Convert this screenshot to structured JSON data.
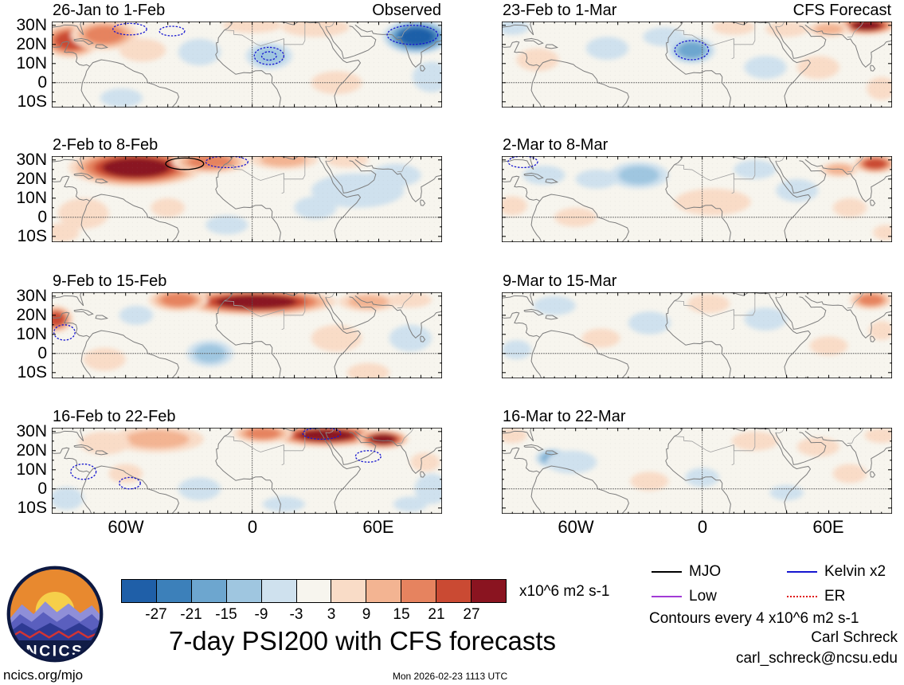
{
  "title": "7-day PSI200 with CFS forecasts",
  "axes": {
    "y_ticks": [
      "30N",
      "20N",
      "10N",
      "0",
      "10S"
    ],
    "x_ticks": [
      "60W",
      "0",
      "60E"
    ]
  },
  "colorbar": {
    "tick_labels": [
      "-27",
      "-21",
      "-15",
      "-9",
      "-3",
      "3",
      "9",
      "15",
      "21",
      "27"
    ],
    "units_label": "x10^6 m2 s-1"
  },
  "legend": {
    "items": [
      {
        "key": "mjo",
        "label": "MJO",
        "color": "#000000",
        "line_style": "solid"
      },
      {
        "key": "kelvin",
        "label": "Kelvin x2",
        "color": "#1616d0",
        "line_style": "solid"
      },
      {
        "key": "low",
        "label": "Low",
        "color": "#a23bd6",
        "line_style": "solid"
      },
      {
        "key": "er",
        "label": "ER",
        "color": "#e01616",
        "line_style": "dotted"
      }
    ]
  },
  "notes": {
    "contour_note": "Contours every 4 x10^6 m2 s-1",
    "credit_name": "Carl Schreck",
    "credit_email": "carl_schreck@ncsu.edu",
    "site": "ncics.org/mjo",
    "timestamp": "Mon 2026-02-23 1113 UTC"
  },
  "logo": {
    "label": "NCICS"
  },
  "chart_data": {
    "type": "heatmap",
    "variable": "PSI200 anomaly (7-day mean streamfunction at 200 hPa)",
    "units": "x10^6 m2 s-1",
    "contour_interval": 4,
    "levels": [
      -27,
      -21,
      -15,
      -9,
      -3,
      3,
      9,
      15,
      21,
      27
    ],
    "palette": [
      "#1f5fa8",
      "#3c80ba",
      "#6da6cf",
      "#9fc6e0",
      "#cfe1ee",
      "#f7f5ee",
      "#f9dcc7",
      "#f3b492",
      "#e6835f",
      "#ca4a33",
      "#8a1420"
    ],
    "map_bg": "#f7f5ee",
    "lon_range": [
      -95,
      90
    ],
    "lat_range": [
      -13,
      32
    ],
    "x_ticks_deg": [
      -60,
      0,
      60
    ],
    "y_ticks_deg": [
      30,
      20,
      10,
      0,
      -10
    ],
    "columns": [
      "Observed",
      "CFS Forecast"
    ],
    "wave_styles": {
      "MJO": {
        "color": "#000000",
        "dash": ""
      },
      "Kelvin": {
        "color": "#1616d0",
        "dash": "2.4 1.8"
      },
      "Low": {
        "color": "#a23bd6",
        "dash": ""
      },
      "ER": {
        "color": "#e01616",
        "dash": "0.8 1.2"
      }
    },
    "panels": [
      {
        "title": "26-Jan to 1-Feb",
        "column": "Observed",
        "features": [
          {
            "lon": -86,
            "lat": 22,
            "rx": 14,
            "ry": 9,
            "value": 26
          },
          {
            "lon": -70,
            "lat": 25,
            "rx": 16,
            "ry": 8,
            "value": 18
          },
          {
            "lon": -52,
            "lat": 17,
            "rx": 11,
            "ry": 6,
            "value": 8
          },
          {
            "lon": -62,
            "lat": -8,
            "rx": 10,
            "ry": 5,
            "value": -4
          },
          {
            "lon": -25,
            "lat": 16,
            "rx": 10,
            "ry": 7,
            "value": -6
          },
          {
            "lon": 0,
            "lat": 30,
            "rx": 14,
            "ry": 4,
            "value": 6
          },
          {
            "lon": 8,
            "lat": 14,
            "rx": 11,
            "ry": 7,
            "value": -13
          },
          {
            "lon": 30,
            "lat": 29,
            "rx": 16,
            "ry": 5,
            "value": 8
          },
          {
            "lon": 40,
            "lat": 0,
            "rx": 12,
            "ry": 6,
            "value": 6
          },
          {
            "lon": 78,
            "lat": 24,
            "rx": 16,
            "ry": 9,
            "value": -31
          },
          {
            "lon": 85,
            "lat": 3,
            "rx": 9,
            "ry": 8,
            "value": -6
          }
        ],
        "wave_contours": [
          {
            "wave": "Kelvin",
            "lon": -58,
            "lat": 28,
            "rx": 8,
            "ry": 3
          },
          {
            "wave": "Kelvin",
            "lon": -38,
            "lat": 27,
            "rx": 6,
            "ry": 2.5
          },
          {
            "wave": "Kelvin",
            "lon": 8,
            "lat": 14,
            "rx": 7,
            "ry": 4.5
          },
          {
            "wave": "Kelvin",
            "lon": 8,
            "lat": 14,
            "rx": 3.5,
            "ry": 2.2
          },
          {
            "wave": "Kelvin",
            "lon": 76,
            "lat": 25,
            "rx": 12,
            "ry": 5
          }
        ]
      },
      {
        "title": "2-Feb to 8-Feb",
        "column": "Observed",
        "features": [
          {
            "lon": -55,
            "lat": 26,
            "rx": 32,
            "ry": 10,
            "value": 34
          },
          {
            "lon": -20,
            "lat": 29,
            "rx": 18,
            "ry": 6,
            "value": 16
          },
          {
            "lon": 15,
            "lat": 30,
            "rx": 16,
            "ry": 5,
            "value": 12
          },
          {
            "lon": 45,
            "lat": 30,
            "rx": 10,
            "ry": 4,
            "value": 6
          },
          {
            "lon": -80,
            "lat": 2,
            "rx": 12,
            "ry": 8,
            "value": 6
          },
          {
            "lon": -90,
            "lat": -8,
            "rx": 8,
            "ry": 5,
            "value": 6
          },
          {
            "lon": -12,
            "lat": -4,
            "rx": 10,
            "ry": 5,
            "value": -4
          },
          {
            "lon": 30,
            "lat": 5,
            "rx": 10,
            "ry": 6,
            "value": -5
          },
          {
            "lon": 50,
            "lat": 14,
            "rx": 22,
            "ry": 9,
            "value": -8
          },
          {
            "lon": 68,
            "lat": 22,
            "rx": 12,
            "ry": 6,
            "value": -8
          },
          {
            "lon": -40,
            "lat": 5,
            "rx": 8,
            "ry": 5,
            "value": 4
          }
        ],
        "wave_contours": [
          {
            "wave": "Kelvin",
            "lon": -12,
            "lat": 29,
            "rx": 10,
            "ry": 3
          },
          {
            "wave": "MJO",
            "lon": -32,
            "lat": 28,
            "rx": 9,
            "ry": 3
          }
        ]
      },
      {
        "title": "9-Feb to 15-Feb",
        "column": "Observed",
        "features": [
          {
            "lon": 2,
            "lat": 27,
            "rx": 38,
            "ry": 7,
            "value": 34
          },
          {
            "lon": -35,
            "lat": 28,
            "rx": 14,
            "ry": 6,
            "value": 18
          },
          {
            "lon": 55,
            "lat": 27,
            "rx": 14,
            "ry": 5,
            "value": 12
          },
          {
            "lon": 75,
            "lat": 28,
            "rx": 10,
            "ry": 4,
            "value": 8
          },
          {
            "lon": -93,
            "lat": 18,
            "rx": 8,
            "ry": 7,
            "value": 26
          },
          {
            "lon": -55,
            "lat": 20,
            "rx": 8,
            "ry": 5,
            "value": -5
          },
          {
            "lon": -20,
            "lat": 0,
            "rx": 11,
            "ry": 7,
            "value": -11
          },
          {
            "lon": -70,
            "lat": -3,
            "rx": 10,
            "ry": 6,
            "value": 6
          },
          {
            "lon": 40,
            "lat": 8,
            "rx": 12,
            "ry": 7,
            "value": 4
          },
          {
            "lon": 75,
            "lat": 8,
            "rx": 10,
            "ry": 7,
            "value": -5
          },
          {
            "lon": 55,
            "lat": -10,
            "rx": 10,
            "ry": 5,
            "value": 5
          }
        ],
        "wave_contours": [
          {
            "wave": "Kelvin",
            "lon": -89,
            "lat": 11,
            "rx": 5,
            "ry": 4
          }
        ]
      },
      {
        "title": "16-Feb to 22-Feb",
        "column": "Observed",
        "features": [
          {
            "lon": 35,
            "lat": 28,
            "rx": 26,
            "ry": 6,
            "value": 30
          },
          {
            "lon": 62,
            "lat": 26,
            "rx": 12,
            "ry": 5,
            "value": 28
          },
          {
            "lon": 5,
            "lat": 29,
            "rx": 14,
            "ry": 5,
            "value": 16
          },
          {
            "lon": -45,
            "lat": 26,
            "rx": 22,
            "ry": 7,
            "value": 10
          },
          {
            "lon": -70,
            "lat": 24,
            "rx": 12,
            "ry": 6,
            "value": 8
          },
          {
            "lon": -60,
            "lat": 8,
            "rx": 8,
            "ry": 5,
            "value": 4
          },
          {
            "lon": -88,
            "lat": -5,
            "rx": 8,
            "ry": 6,
            "value": -4
          },
          {
            "lon": -25,
            "lat": 0,
            "rx": 10,
            "ry": 6,
            "value": -5
          },
          {
            "lon": 15,
            "lat": -8,
            "rx": 10,
            "ry": 4,
            "value": -4
          },
          {
            "lon": 82,
            "lat": 14,
            "rx": 7,
            "ry": 5,
            "value": 8
          },
          {
            "lon": 85,
            "lat": 0,
            "rx": 8,
            "ry": 8,
            "value": -8
          },
          {
            "lon": 75,
            "lat": -8,
            "rx": 8,
            "ry": 4,
            "value": -5
          }
        ],
        "wave_contours": [
          {
            "wave": "Kelvin",
            "lon": -80,
            "lat": 9,
            "rx": 6,
            "ry": 4
          },
          {
            "wave": "Kelvin",
            "lon": -58,
            "lat": 3,
            "rx": 5,
            "ry": 3
          },
          {
            "wave": "Kelvin",
            "lon": 55,
            "lat": 17,
            "rx": 6,
            "ry": 3
          },
          {
            "wave": "Kelvin",
            "lon": 33,
            "lat": 29,
            "rx": 9,
            "ry": 3
          }
        ]
      },
      {
        "title": "23-Feb to 1-Mar",
        "column": "CFS Forecast",
        "features": [
          {
            "lon": -5,
            "lat": 17,
            "rx": 11,
            "ry": 7,
            "value": -15
          },
          {
            "lon": -18,
            "lat": 24,
            "rx": 10,
            "ry": 5,
            "value": -6
          },
          {
            "lon": 78,
            "lat": 30,
            "rx": 14,
            "ry": 5,
            "value": 30
          },
          {
            "lon": 60,
            "lat": 28,
            "rx": 10,
            "ry": 4,
            "value": 12
          },
          {
            "lon": 40,
            "lat": 28,
            "rx": 10,
            "ry": 4,
            "value": 6
          },
          {
            "lon": 15,
            "lat": 29,
            "rx": 10,
            "ry": 4,
            "value": 8
          },
          {
            "lon": -78,
            "lat": 12,
            "rx": 10,
            "ry": 6,
            "value": 5
          },
          {
            "lon": -90,
            "lat": 29,
            "rx": 8,
            "ry": 4,
            "value": -5
          },
          {
            "lon": -45,
            "lat": 18,
            "rx": 10,
            "ry": 6,
            "value": -4
          },
          {
            "lon": 30,
            "lat": 8,
            "rx": 10,
            "ry": 6,
            "value": -4
          },
          {
            "lon": 55,
            "lat": 8,
            "rx": 10,
            "ry": 6,
            "value": 4
          },
          {
            "lon": 85,
            "lat": -3,
            "rx": 7,
            "ry": 6,
            "value": 6
          }
        ],
        "wave_contours": [
          {
            "wave": "Kelvin",
            "lon": -5,
            "lat": 17,
            "rx": 8,
            "ry": 5
          }
        ]
      },
      {
        "title": "2-Mar to 8-Mar",
        "column": "CFS Forecast",
        "features": [
          {
            "lon": -30,
            "lat": 22,
            "rx": 14,
            "ry": 7,
            "value": -11
          },
          {
            "lon": -50,
            "lat": 20,
            "rx": 10,
            "ry": 5,
            "value": -6
          },
          {
            "lon": -75,
            "lat": 22,
            "rx": 10,
            "ry": 5,
            "value": -5
          },
          {
            "lon": 82,
            "lat": 28,
            "rx": 10,
            "ry": 5,
            "value": 26
          },
          {
            "lon": 65,
            "lat": 25,
            "rx": 9,
            "ry": 4,
            "value": 10
          },
          {
            "lon": 5,
            "lat": 8,
            "rx": 18,
            "ry": 7,
            "value": 5
          },
          {
            "lon": -60,
            "lat": 0,
            "rx": 10,
            "ry": 5,
            "value": 4
          },
          {
            "lon": 25,
            "lat": 25,
            "rx": 10,
            "ry": 5,
            "value": -4
          },
          {
            "lon": 45,
            "lat": 14,
            "rx": 10,
            "ry": 6,
            "value": -4
          },
          {
            "lon": 70,
            "lat": 5,
            "rx": 8,
            "ry": 5,
            "value": 5
          },
          {
            "lon": 87,
            "lat": -8,
            "rx": 6,
            "ry": 4,
            "value": 8
          },
          {
            "lon": -90,
            "lat": 6,
            "rx": 7,
            "ry": 5,
            "value": 4
          }
        ],
        "wave_contours": [
          {
            "wave": "Kelvin",
            "lon": -85,
            "lat": 29,
            "rx": 7,
            "ry": 3
          }
        ]
      },
      {
        "title": "9-Mar to 15-Mar",
        "column": "CFS Forecast",
        "features": [
          {
            "lon": -70,
            "lat": 25,
            "rx": 10,
            "ry": 5,
            "value": -5
          },
          {
            "lon": -25,
            "lat": 16,
            "rx": 10,
            "ry": 6,
            "value": -4
          },
          {
            "lon": -48,
            "lat": 8,
            "rx": 9,
            "ry": 5,
            "value": 4
          },
          {
            "lon": 3,
            "lat": 26,
            "rx": 10,
            "ry": 5,
            "value": 4
          },
          {
            "lon": 30,
            "lat": 18,
            "rx": 10,
            "ry": 6,
            "value": -4
          },
          {
            "lon": 80,
            "lat": 28,
            "rx": 10,
            "ry": 5,
            "value": 16
          },
          {
            "lon": 60,
            "lat": 4,
            "rx": 9,
            "ry": 5,
            "value": 4
          },
          {
            "lon": -88,
            "lat": 2,
            "rx": 7,
            "ry": 5,
            "value": -4
          },
          {
            "lon": 85,
            "lat": 12,
            "rx": 6,
            "ry": 5,
            "value": 6
          }
        ],
        "wave_contours": []
      },
      {
        "title": "16-Mar to 22-Mar",
        "column": "CFS Forecast",
        "features": [
          {
            "lon": -71,
            "lat": 16,
            "rx": 8,
            "ry": 5,
            "value": -15
          },
          {
            "lon": -62,
            "lat": 14,
            "rx": 12,
            "ry": 6,
            "value": -6
          },
          {
            "lon": 25,
            "lat": 25,
            "rx": 11,
            "ry": 5,
            "value": 5
          },
          {
            "lon": 55,
            "lat": 22,
            "rx": 10,
            "ry": 5,
            "value": 6
          },
          {
            "lon": 85,
            "lat": 28,
            "rx": 8,
            "ry": 4,
            "value": 8
          },
          {
            "lon": -25,
            "lat": 4,
            "rx": 9,
            "ry": 5,
            "value": 4
          },
          {
            "lon": 0,
            "lat": 6,
            "rx": 8,
            "ry": 5,
            "value": -4
          },
          {
            "lon": 40,
            "lat": -2,
            "rx": 8,
            "ry": 4,
            "value": -4
          },
          {
            "lon": -90,
            "lat": 28,
            "rx": 7,
            "ry": 4,
            "value": 4
          },
          {
            "lon": 70,
            "lat": 8,
            "rx": 8,
            "ry": 5,
            "value": 4
          }
        ],
        "wave_contours": []
      }
    ]
  }
}
